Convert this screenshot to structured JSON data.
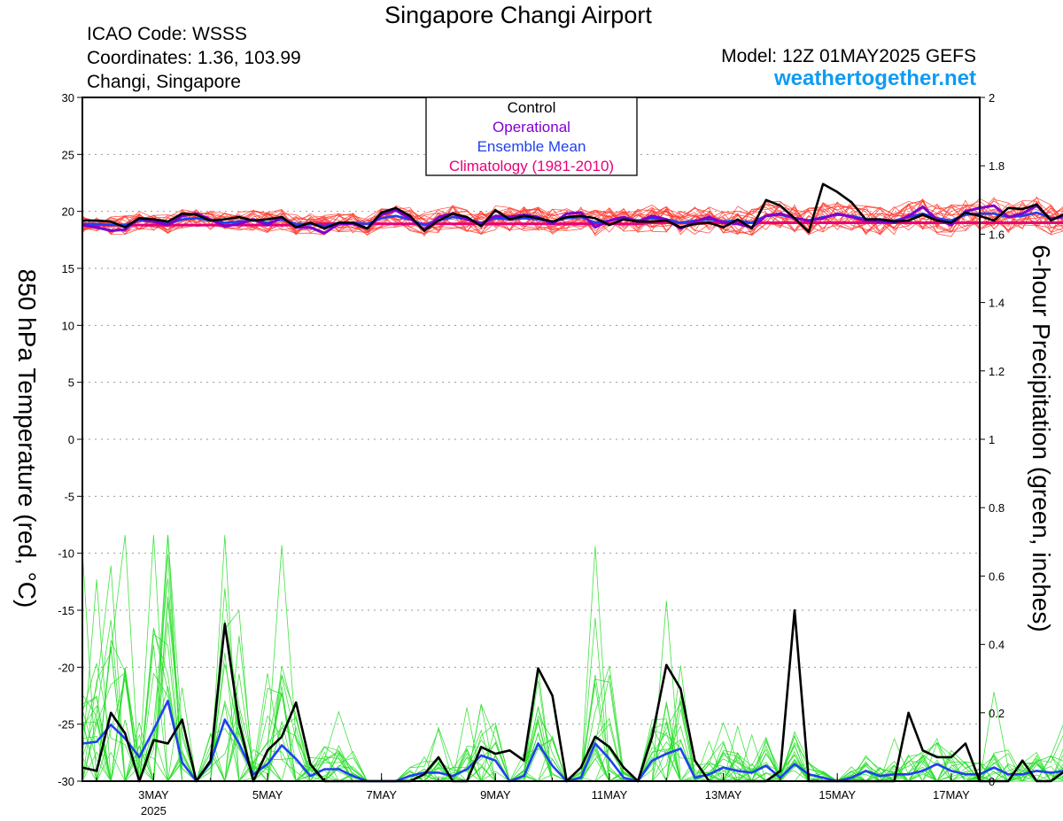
{
  "header": {
    "title": "Singapore Changi Airport",
    "icao": "ICAO Code: WSSS",
    "coordinates": "Coordinates: 1.36, 103.99",
    "location": "Changi, Singapore",
    "model": "Model: 12Z 01MAY2025 GEFS",
    "site": "weathertogether.net"
  },
  "colors": {
    "control": "#000000",
    "operational": "#8000d0",
    "ensemble_mean": "#2040f0",
    "climatology": "#e8007a",
    "temp_members": "#ff3b2f",
    "precip_members": "#22dd22",
    "site": "#0f9bf2"
  },
  "chart_data": {
    "type": "line",
    "ylabel": "850 hPa Temperature (red, °C)",
    "ylabel_right": "6-hour Precipitation (green, inches)",
    "ylim": [
      -30,
      30
    ],
    "ylim_right": [
      0,
      2
    ],
    "yticks": [
      "30",
      "25",
      "20",
      "15",
      "10",
      "5",
      "0",
      "-5",
      "-10",
      "-15",
      "-20",
      "-25",
      "-30"
    ],
    "yticks_right": [
      "2",
      "1.8",
      "1.6",
      "1.4",
      "1.2",
      "1",
      "0.8",
      "0.6",
      "0.4",
      "0.2",
      "0"
    ],
    "xlim_days": [
      1.75,
      17.5
    ],
    "xticks": [
      "3MAY",
      "5MAY",
      "7MAY",
      "9MAY",
      "11MAY",
      "13MAY",
      "15MAY",
      "17MAY"
    ],
    "xtick_days": [
      3,
      5,
      7,
      9,
      11,
      13,
      15,
      17
    ],
    "year_label": "2025",
    "grid": true,
    "legend": {
      "position": "top-center",
      "entries": [
        "Control",
        "Operational",
        "Ensemble Mean",
        "Climatology (1981-2010)"
      ]
    },
    "series": [
      {
        "name": "Control",
        "axis": "left",
        "start_day": 1.75,
        "step_days": 0.25,
        "values": [
          19.2,
          19.2,
          19.1,
          18.6,
          19.4,
          19.3,
          19.1,
          19.8,
          19.7,
          19.2,
          19.3,
          19.5,
          19.2,
          19.3,
          19.5,
          18.6,
          19.0,
          18.5,
          19.0,
          19.0,
          18.5,
          19.9,
          20.3,
          19.6,
          18.3,
          19.2,
          19.8,
          19.5,
          18.7,
          20.1,
          19.3,
          19.6,
          19.4,
          19.1,
          19.5,
          19.6,
          19.4,
          18.8,
          19.3,
          19.1,
          19.1,
          19.2,
          18.6,
          18.9,
          19.0,
          18.6,
          19.3,
          18.5,
          21.0,
          20.5,
          19.4,
          18.2,
          22.4,
          21.7,
          20.8,
          19.3,
          19.3,
          19.1,
          19.2,
          19.7,
          19.2,
          19.0,
          19.9,
          19.6,
          19.2,
          20.3,
          20.2,
          20.6,
          19.2,
          19.8,
          20.3
        ]
      },
      {
        "name": "Operational",
        "axis": "left",
        "start_day": 1.75,
        "step_days": 0.25,
        "values": [
          18.8,
          18.6,
          18.3,
          18.4,
          19.4,
          19.1,
          18.8,
          19.6,
          19.8,
          19.3,
          18.7,
          18.9,
          19.3,
          18.8,
          19.5,
          18.6,
          18.6,
          18.1,
          18.9,
          18.9,
          18.5,
          19.7,
          20.1,
          19.4,
          18.4,
          19.5,
          19.8,
          19.3,
          18.9,
          19.6,
          19.5,
          19.7,
          19.5,
          18.9,
          19.8,
          19.9,
          18.6,
          19.2,
          19.5,
          19.1,
          19.6,
          19.3,
          18.5,
          19.1,
          19.5,
          19.0,
          18.9,
          18.6,
          19.6,
          19.8,
          19.4,
          19.2,
          19.4,
          19.8,
          19.5,
          19.2,
          19.1,
          19.0,
          19.6,
          20.4,
          19.3,
          18.8,
          20.0,
          20.3,
          20.5,
          19.5,
          19.8,
          20.5,
          19.3,
          19.6,
          19.8
        ]
      },
      {
        "name": "Ensemble Mean",
        "axis": "left",
        "start_day": 1.75,
        "step_days": 0.25,
        "values": [
          18.9,
          18.9,
          18.8,
          18.8,
          19.2,
          19.1,
          18.9,
          19.3,
          19.4,
          19.2,
          19.0,
          19.1,
          19.2,
          19.0,
          19.3,
          18.9,
          18.9,
          18.7,
          19.0,
          19.0,
          18.9,
          19.4,
          19.6,
          19.3,
          18.8,
          19.2,
          19.5,
          19.3,
          19.0,
          19.4,
          19.3,
          19.4,
          19.3,
          19.1,
          19.4,
          19.5,
          19.0,
          19.2,
          19.4,
          19.2,
          19.4,
          19.3,
          19.0,
          19.2,
          19.3,
          19.1,
          19.2,
          19.0,
          19.6,
          19.7,
          19.4,
          19.2,
          19.5,
          19.7,
          19.6,
          19.3,
          19.3,
          19.2,
          19.5,
          19.8,
          19.4,
          19.2,
          19.7,
          19.8,
          19.8,
          19.5,
          19.6,
          19.9,
          19.4,
          19.5,
          19.6
        ]
      },
      {
        "name": "Climatology (1981-2010)",
        "axis": "left",
        "start_day": 1.75,
        "step_days": 0.25,
        "values": [
          18.8,
          18.8,
          18.8,
          18.8,
          18.8,
          18.8,
          18.8,
          18.8,
          18.8,
          18.8,
          18.8,
          18.8,
          18.8,
          18.8,
          18.8,
          18.8,
          18.9,
          18.9,
          18.9,
          18.9,
          18.9,
          18.9,
          18.9,
          18.9,
          18.9,
          18.9,
          18.9,
          18.9,
          18.9,
          18.9,
          18.9,
          18.9,
          18.9,
          18.9,
          18.9,
          18.9,
          18.9,
          18.9,
          18.9,
          18.9,
          19.0,
          19.0,
          19.0,
          19.0,
          19.0,
          19.0,
          19.0,
          19.0,
          19.0,
          19.0,
          19.0,
          19.0,
          19.0,
          19.0,
          19.0,
          19.0,
          19.0,
          19.0,
          19.0,
          19.0,
          19.0,
          19.0,
          19.0,
          19.0,
          19.0,
          19.0,
          19.0,
          19.0,
          19.0,
          19.0,
          19.0
        ]
      },
      {
        "name": "Control",
        "axis": "right",
        "start_day": 1.75,
        "step_days": 0.25,
        "values": [
          0.04,
          0.03,
          0.2,
          0.14,
          0.0,
          0.12,
          0.11,
          0.18,
          0.0,
          0.06,
          0.46,
          0.17,
          0.0,
          0.09,
          0.13,
          0.23,
          0.05,
          0.0,
          0.0,
          0.0,
          0.0,
          0.0,
          0.0,
          0.0,
          0.02,
          0.07,
          0.0,
          0.0,
          0.1,
          0.08,
          0.09,
          0.06,
          0.33,
          0.25,
          0.0,
          0.04,
          0.13,
          0.1,
          0.04,
          0.0,
          0.13,
          0.34,
          0.27,
          0.06,
          0.0,
          0.0,
          0.0,
          0.0,
          0.0,
          0.03,
          0.5,
          0.0,
          0.0,
          0.0,
          0.0,
          0.0,
          0.0,
          0.0,
          0.2,
          0.09,
          0.07,
          0.07,
          0.11,
          0.0,
          0.0,
          0.0,
          0.06,
          0.0,
          0.0,
          0.03,
          0.0
        ]
      },
      {
        "name": "Ensemble Mean",
        "axis": "right",
        "start_day": 1.75,
        "step_days": 0.25,
        "values": [
          0.11,
          0.115,
          0.165,
          0.125,
          0.07,
          0.15,
          0.235,
          0.055,
          0.0,
          0.055,
          0.18,
          0.11,
          0.02,
          0.05,
          0.105,
          0.065,
          0.015,
          0.035,
          0.035,
          0.015,
          0.0,
          0.0,
          0.0,
          0.015,
          0.025,
          0.025,
          0.015,
          0.035,
          0.075,
          0.06,
          0.0,
          0.015,
          0.11,
          0.045,
          0.0,
          0.01,
          0.11,
          0.065,
          0.01,
          0.0,
          0.06,
          0.08,
          0.095,
          0.01,
          0.02,
          0.04,
          0.03,
          0.025,
          0.045,
          0.01,
          0.05,
          0.02,
          0.01,
          0.0,
          0.01,
          0.03,
          0.015,
          0.02,
          0.02,
          0.03,
          0.05,
          0.03,
          0.02,
          0.02,
          0.04,
          0.02,
          0.02,
          0.03,
          0.025,
          0.03,
          0.035
        ]
      }
    ]
  }
}
